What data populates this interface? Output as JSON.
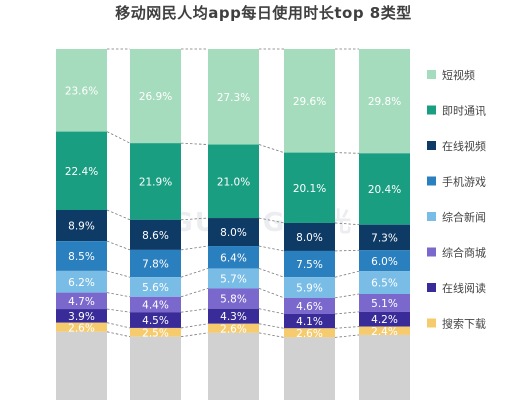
{
  "chart_data": {
    "type": "bar",
    "stacked": true,
    "title": "移动网民人均app每日使用时长top 8类型",
    "categories": [
      "",
      "",
      "",
      "",
      ""
    ],
    "series": [
      {
        "name": "搜索下载",
        "color": "#f5cb6e",
        "values": [
          2.6,
          2.5,
          2.6,
          2.6,
          2.4
        ]
      },
      {
        "name": "在线阅读",
        "color": "#3a2c98",
        "values": [
          3.9,
          4.5,
          4.3,
          4.1,
          4.2
        ]
      },
      {
        "name": "综合商城",
        "color": "#7b68cc",
        "values": [
          4.7,
          4.4,
          5.8,
          4.6,
          5.1
        ]
      },
      {
        "name": "综合新闻",
        "color": "#79bde6",
        "values": [
          6.2,
          5.6,
          5.7,
          5.9,
          6.5
        ]
      },
      {
        "name": "手机游戏",
        "color": "#2a7fbe",
        "values": [
          8.5,
          7.8,
          6.4,
          7.5,
          6.0
        ]
      },
      {
        "name": "在线视频",
        "color": "#0e3a66",
        "values": [
          8.9,
          8.6,
          8.0,
          8.0,
          7.3
        ]
      },
      {
        "name": "即时通讯",
        "color": "#1a9e82",
        "values": [
          22.4,
          21.9,
          21.0,
          20.1,
          20.4
        ]
      },
      {
        "name": "短视频",
        "color": "#a5dcbd",
        "values": [
          23.6,
          26.9,
          27.3,
          29.6,
          29.8
        ]
      }
    ],
    "bottom_segment": {
      "color": "#d1d1d1"
    },
    "connectors": "dashed",
    "legend": {
      "position": "right",
      "entries_top_to_bottom": [
        "短视频",
        "即时通讯",
        "在线视频",
        "手机游戏",
        "综合新闻",
        "综合商城",
        "在线阅读",
        "搜索下载"
      ]
    }
  },
  "watermark": {
    "text": "JIGUANG 极光"
  }
}
